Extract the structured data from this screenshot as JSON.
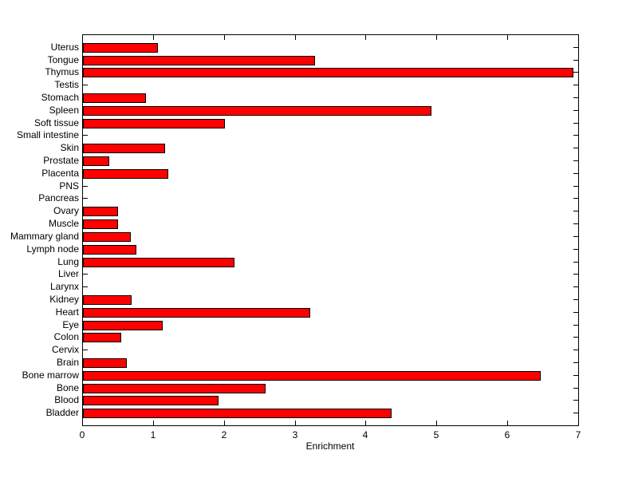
{
  "figure": {
    "background": "#ffffff",
    "title": ""
  },
  "chart_data": {
    "type": "bar",
    "orientation": "horizontal",
    "title": "",
    "xlabel": "Enrichment",
    "ylabel": "",
    "xlim": [
      0,
      7
    ],
    "xticks": [
      0,
      1,
      2,
      3,
      4,
      5,
      6,
      7
    ],
    "grid": false,
    "legend": null,
    "bar_color": "#ff0000",
    "bar_edge_color": "#000000",
    "categories": [
      "Uterus",
      "Tongue",
      "Thymus",
      "Testis",
      "Stomach",
      "Spleen",
      "Soft tissue",
      "Small intestine",
      "Skin",
      "Prostate",
      "Placenta",
      "PNS",
      "Pancreas",
      "Ovary",
      "Muscle",
      "Mammary gland",
      "Lymph node",
      "Lung",
      "Liver",
      "Larynx",
      "Kidney",
      "Heart",
      "Eye",
      "Colon",
      "Cervix",
      "Brain",
      "Bone marrow",
      "Bone",
      "Blood",
      "Bladder"
    ],
    "values": [
      1.06,
      3.27,
      6.92,
      0,
      0.89,
      4.92,
      2.0,
      0,
      1.16,
      0.37,
      1.2,
      0,
      0,
      0.5,
      0.49,
      0.68,
      0.75,
      2.14,
      0,
      0,
      0.69,
      3.21,
      1.13,
      0.54,
      0,
      0.62,
      6.46,
      2.58,
      1.91,
      4.36
    ]
  }
}
